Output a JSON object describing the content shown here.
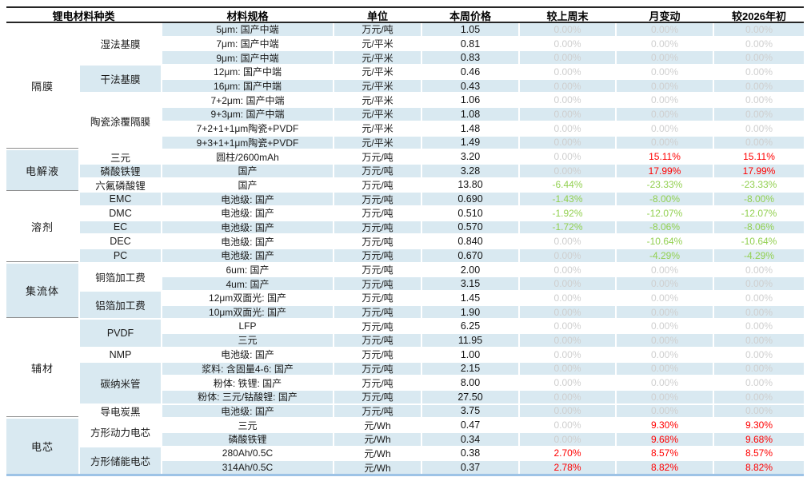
{
  "header": {
    "columns": [
      "锂电材料种类",
      "材料规格",
      "单位",
      "本周价格",
      "较上周末",
      "月变动",
      "较2026年初"
    ]
  },
  "colors": {
    "band_blue": "#D9E9F1",
    "positive_red": "#FF0000",
    "negative_green": "#92D050",
    "zero_gray": "#CFCFCF",
    "rule_dark": "#262626",
    "rule_bottom_blue": "#9DC3E6"
  },
  "categories": [
    {
      "label": "隔膜",
      "rows": 9,
      "band": false
    },
    {
      "label": "电解液",
      "rows": 3,
      "band": true
    },
    {
      "label": "溶剂",
      "rows": 5,
      "band": false
    },
    {
      "label": "集流体",
      "rows": 4,
      "band": true
    },
    {
      "label": "辅材",
      "rows": 7,
      "band": false
    },
    {
      "label": "电芯",
      "rows": 4,
      "band": true
    }
  ],
  "subcategories": [
    {
      "label": "湿法基膜",
      "rows": 3,
      "band": false
    },
    {
      "label": "干法基膜",
      "rows": 2,
      "band": true
    },
    {
      "label": "陶瓷涂覆隔膜",
      "rows": 4,
      "band": false
    },
    {
      "label": "三元",
      "rows": 1,
      "band": false
    },
    {
      "label": "磷酸铁锂",
      "rows": 1,
      "band": true
    },
    {
      "label": "六氟磷酸锂",
      "rows": 1,
      "band": false
    },
    {
      "label": "EMC",
      "rows": 1,
      "band": true
    },
    {
      "label": "DMC",
      "rows": 1,
      "band": false
    },
    {
      "label": "EC",
      "rows": 1,
      "band": true
    },
    {
      "label": "DEC",
      "rows": 1,
      "band": false
    },
    {
      "label": "PC",
      "rows": 1,
      "band": true
    },
    {
      "label": "铜箔加工费",
      "rows": 2,
      "band": false
    },
    {
      "label": "铝箔加工费",
      "rows": 2,
      "band": true
    },
    {
      "label": "PVDF",
      "rows": 2,
      "band": true
    },
    {
      "label": "NMP",
      "rows": 1,
      "band": false
    },
    {
      "label": "碳纳米管",
      "rows": 3,
      "band": true
    },
    {
      "label": "导电炭黑",
      "rows": 1,
      "band": false
    },
    {
      "label": "方形动力电芯",
      "rows": 2,
      "band": false
    },
    {
      "label": "方形储能电芯",
      "rows": 2,
      "band": true
    }
  ],
  "rows": [
    {
      "spec": "5μm: 国产中端",
      "unit": "万元/吨",
      "price": "1.05",
      "wow": "0.00%",
      "mom": "0.00%",
      "ytd": "0.00%",
      "band": true
    },
    {
      "spec": "7μm: 国产中端",
      "unit": "元/平米",
      "price": "0.81",
      "wow": "0.00%",
      "mom": "0.00%",
      "ytd": "0.00%",
      "band": false
    },
    {
      "spec": "9μm: 国产中端",
      "unit": "元/平米",
      "price": "0.83",
      "wow": "0.00%",
      "mom": "0.00%",
      "ytd": "0.00%",
      "band": true
    },
    {
      "spec": "12μm: 国产中端",
      "unit": "元/平米",
      "price": "0.46",
      "wow": "0.00%",
      "mom": "0.00%",
      "ytd": "0.00%",
      "band": false
    },
    {
      "spec": "16μm: 国产中端",
      "unit": "元/平米",
      "price": "0.43",
      "wow": "0.00%",
      "mom": "0.00%",
      "ytd": "0.00%",
      "band": true
    },
    {
      "spec": "7+2μm: 国产中端",
      "unit": "元/平米",
      "price": "1.06",
      "wow": "0.00%",
      "mom": "0.00%",
      "ytd": "0.00%",
      "band": false
    },
    {
      "spec": "9+3μm: 国产中端",
      "unit": "元/平米",
      "price": "1.08",
      "wow": "0.00%",
      "mom": "0.00%",
      "ytd": "0.00%",
      "band": true
    },
    {
      "spec": "7+2+1+1μm陶瓷+PVDF",
      "unit": "元/平米",
      "price": "1.48",
      "wow": "0.00%",
      "mom": "0.00%",
      "ytd": "0.00%",
      "band": false
    },
    {
      "spec": "9+3+1+1μm陶瓷+PVDF",
      "unit": "元/平米",
      "price": "1.49",
      "wow": "0.00%",
      "mom": "0.00%",
      "ytd": "0.00%",
      "band": true
    },
    {
      "spec": "圆柱/2600mAh",
      "unit": "万元/吨",
      "price": "3.20",
      "wow": "0.00%",
      "mom": "15.11%",
      "ytd": "15.11%",
      "band": false
    },
    {
      "spec": "国产",
      "unit": "万元/吨",
      "price": "3.28",
      "wow": "0.00%",
      "mom": "17.99%",
      "ytd": "17.99%",
      "band": true
    },
    {
      "spec": "国产",
      "unit": "万元/吨",
      "price": "13.80",
      "wow": "-6.44%",
      "mom": "-23.33%",
      "ytd": "-23.33%",
      "band": false
    },
    {
      "spec": "电池级: 国产",
      "unit": "万元/吨",
      "price": "0.690",
      "wow": "-1.43%",
      "mom": "-8.00%",
      "ytd": "-8.00%",
      "band": true
    },
    {
      "spec": "电池级: 国产",
      "unit": "万元/吨",
      "price": "0.510",
      "wow": "-1.92%",
      "mom": "-12.07%",
      "ytd": "-12.07%",
      "band": false
    },
    {
      "spec": "电池级: 国产",
      "unit": "万元/吨",
      "price": "0.570",
      "wow": "-1.72%",
      "mom": "-8.06%",
      "ytd": "-8.06%",
      "band": true
    },
    {
      "spec": "电池级: 国产",
      "unit": "万元/吨",
      "price": "0.840",
      "wow": "0.00%",
      "mom": "-10.64%",
      "ytd": "-10.64%",
      "band": false
    },
    {
      "spec": "电池级: 国产",
      "unit": "万元/吨",
      "price": "0.670",
      "wow": "0.00%",
      "mom": "-4.29%",
      "ytd": "-4.29%",
      "band": true
    },
    {
      "spec": "6um: 国产",
      "unit": "万元/吨",
      "price": "2.00",
      "wow": "0.00%",
      "mom": "0.00%",
      "ytd": "0.00%",
      "band": false
    },
    {
      "spec": "4um: 国产",
      "unit": "万元/吨",
      "price": "3.15",
      "wow": "0.00%",
      "mom": "0.00%",
      "ytd": "0.00%",
      "band": true
    },
    {
      "spec": "12μm双面光: 国产",
      "unit": "万元/吨",
      "price": "1.45",
      "wow": "0.00%",
      "mom": "0.00%",
      "ytd": "0.00%",
      "band": false
    },
    {
      "spec": "10μm双面光: 国产",
      "unit": "万元/吨",
      "price": "1.90",
      "wow": "0.00%",
      "mom": "0.00%",
      "ytd": "0.00%",
      "band": true
    },
    {
      "spec": "LFP",
      "unit": "万元/吨",
      "price": "6.25",
      "wow": "0.00%",
      "mom": "0.00%",
      "ytd": "0.00%",
      "band": false
    },
    {
      "spec": "三元",
      "unit": "万元/吨",
      "price": "11.95",
      "wow": "0.00%",
      "mom": "0.00%",
      "ytd": "0.00%",
      "band": true
    },
    {
      "spec": "电池级: 国产",
      "unit": "万元/吨",
      "price": "1.00",
      "wow": "0.00%",
      "mom": "0.00%",
      "ytd": "0.00%",
      "band": false
    },
    {
      "spec": "浆料: 含固量4-6: 国产",
      "unit": "万元/吨",
      "price": "2.15",
      "wow": "0.00%",
      "mom": "0.00%",
      "ytd": "0.00%",
      "band": true
    },
    {
      "spec": "粉体: 铁锂: 国产",
      "unit": "万元/吨",
      "price": "8.00",
      "wow": "0.00%",
      "mom": "0.00%",
      "ytd": "0.00%",
      "band": false
    },
    {
      "spec": "粉体: 三元/钴酸锂: 国产",
      "unit": "万元/吨",
      "price": "27.50",
      "wow": "0.00%",
      "mom": "0.00%",
      "ytd": "0.00%",
      "band": true
    },
    {
      "spec": "电池级: 国产",
      "unit": "万元/吨",
      "price": "3.75",
      "wow": "0.00%",
      "mom": "0.00%",
      "ytd": "0.00%",
      "band": true
    },
    {
      "spec": "三元",
      "unit": "元/Wh",
      "price": "0.47",
      "wow": "0.00%",
      "mom": "9.30%",
      "ytd": "9.30%",
      "band": false
    },
    {
      "spec": "磷酸铁锂",
      "unit": "元/Wh",
      "price": "0.34",
      "wow": "0.00%",
      "mom": "9.68%",
      "ytd": "9.68%",
      "band": true
    },
    {
      "spec": "280Ah/0.5C",
      "unit": "元/Wh",
      "price": "0.38",
      "wow": "2.70%",
      "mom": "8.57%",
      "ytd": "8.57%",
      "band": false
    },
    {
      "spec": "314Ah/0.5C",
      "unit": "元/Wh",
      "price": "0.37",
      "wow": "2.78%",
      "mom": "8.82%",
      "ytd": "8.82%",
      "band": true
    }
  ]
}
